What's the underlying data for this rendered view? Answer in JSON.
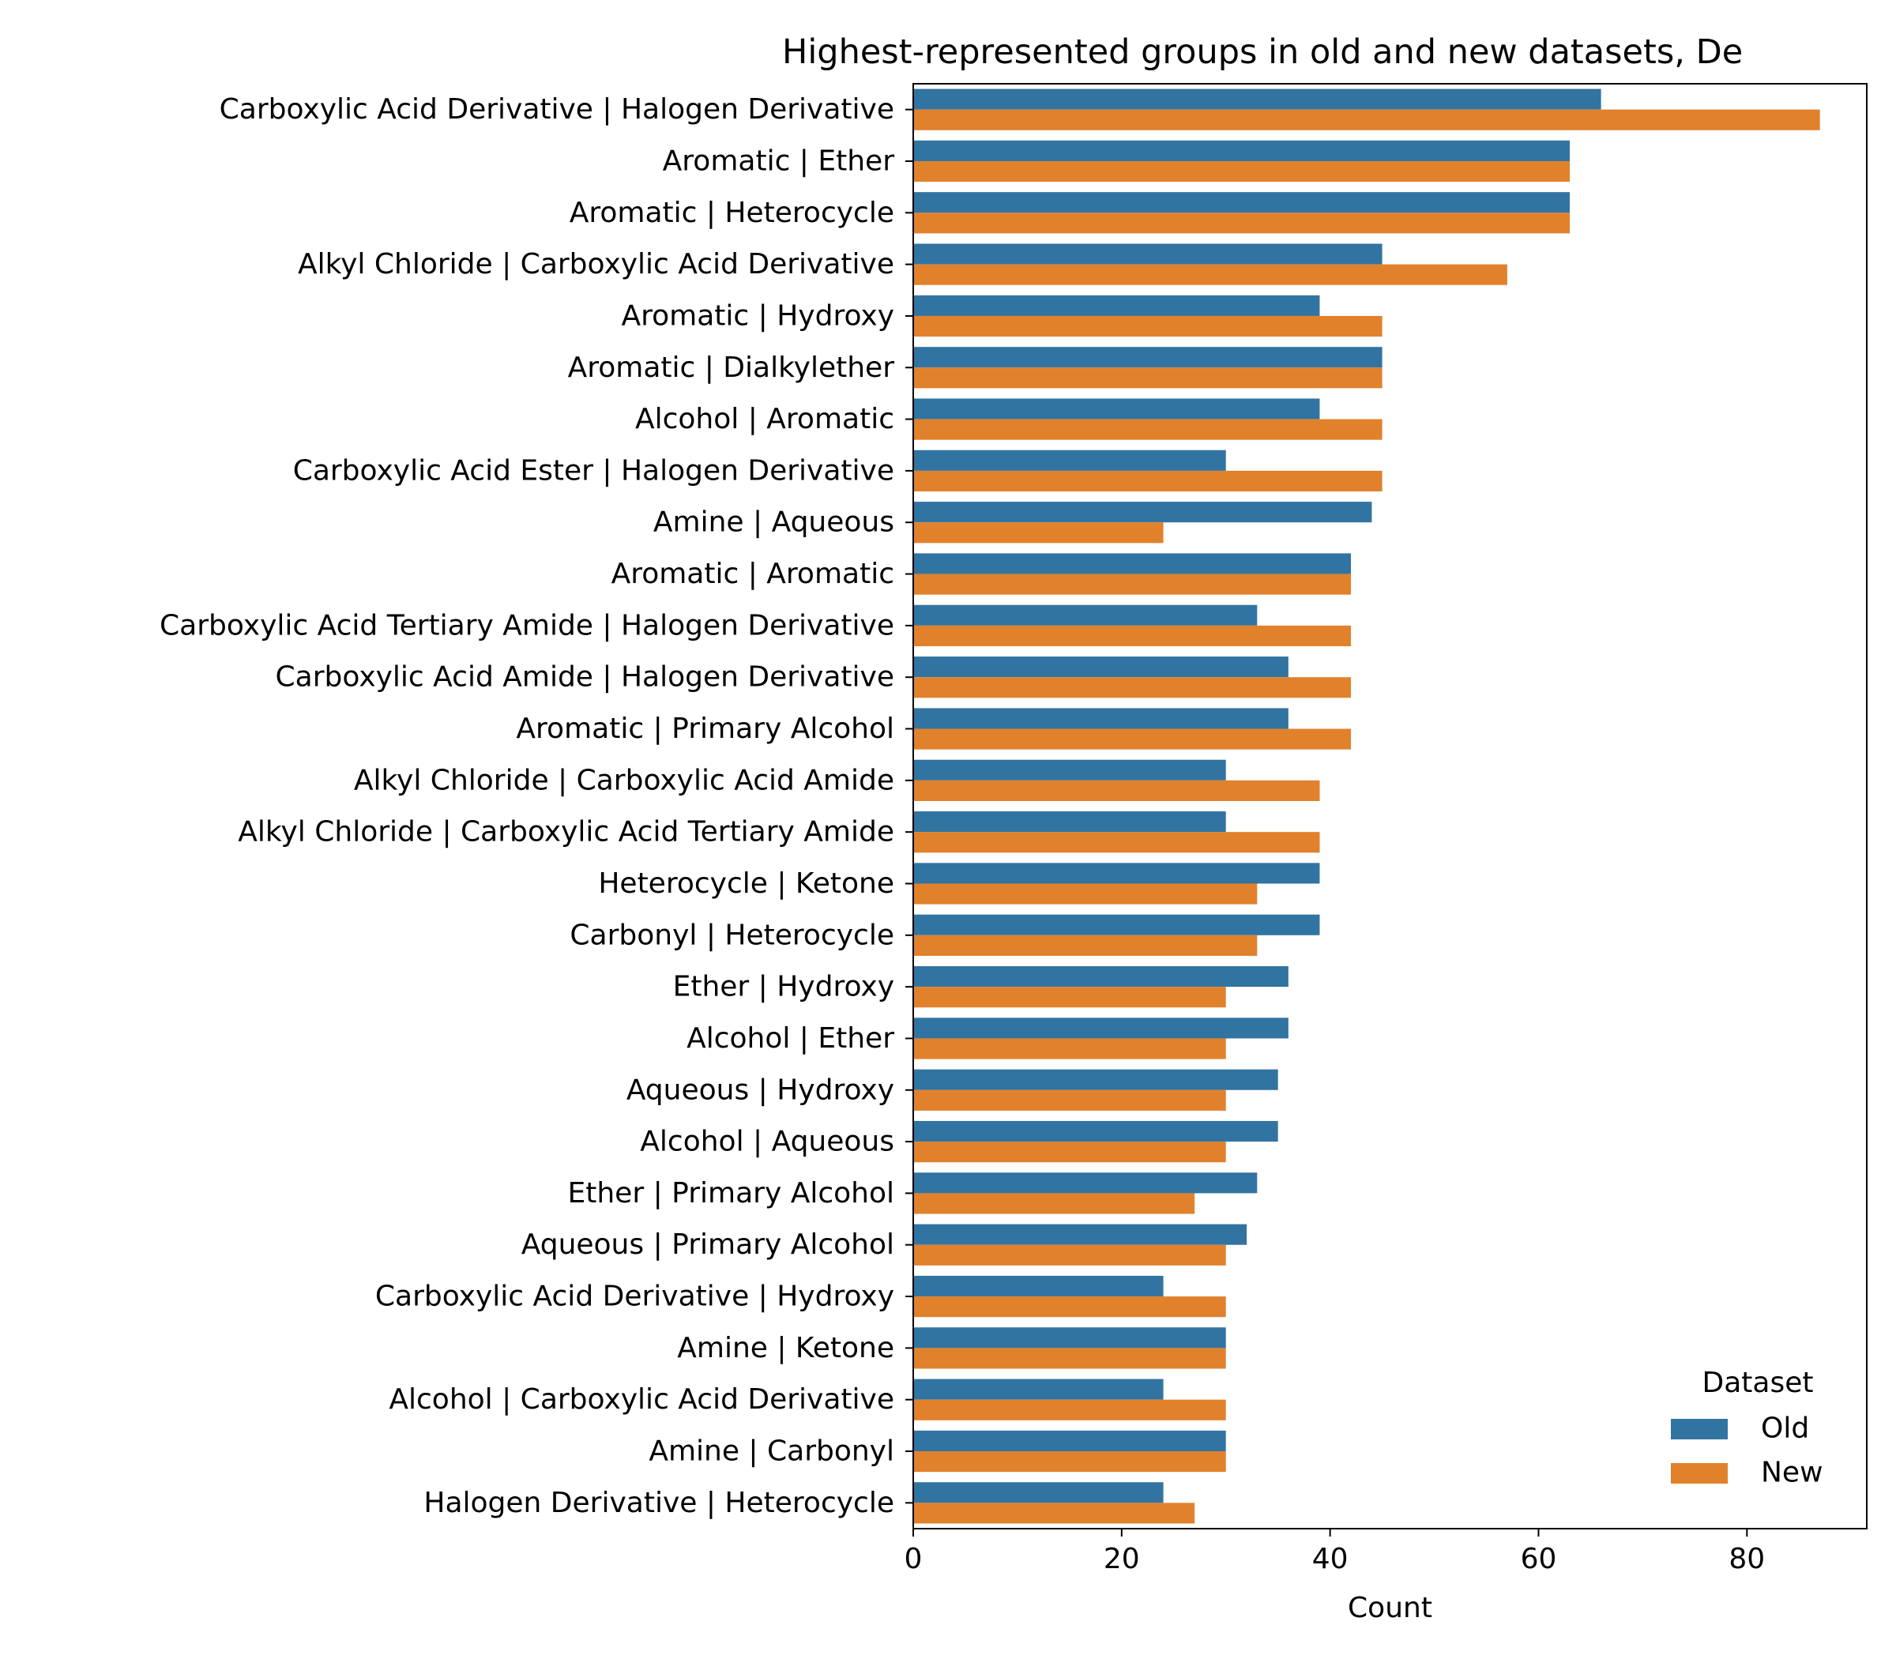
{
  "chart_data": {
    "type": "bar",
    "orientation": "horizontal",
    "title": "Highest-represented groups in old and new datasets, De",
    "xlabel": "Count",
    "ylabel": "",
    "xlim": [
      0,
      91.5
    ],
    "xticks": [
      0,
      20,
      40,
      60,
      80
    ],
    "grid": false,
    "legend": {
      "title": "Dataset",
      "placement": "lower-right"
    },
    "categories": [
      "Carboxylic Acid Derivative | Halogen Derivative",
      "Aromatic | Ether",
      "Aromatic | Heterocycle",
      "Alkyl Chloride | Carboxylic Acid Derivative",
      "Aromatic | Hydroxy",
      "Aromatic | Dialkylether",
      "Alcohol | Aromatic",
      "Carboxylic Acid Ester | Halogen Derivative",
      "Amine | Aqueous",
      "Aromatic | Aromatic",
      "Carboxylic Acid Tertiary Amide | Halogen Derivative",
      "Carboxylic Acid Amide | Halogen Derivative",
      "Aromatic | Primary Alcohol",
      "Alkyl Chloride | Carboxylic Acid Amide",
      "Alkyl Chloride | Carboxylic Acid Tertiary Amide",
      "Heterocycle | Ketone",
      "Carbonyl | Heterocycle",
      "Ether | Hydroxy",
      "Alcohol | Ether",
      "Aqueous | Hydroxy",
      "Alcohol | Aqueous",
      "Ether | Primary Alcohol",
      "Aqueous | Primary Alcohol",
      "Carboxylic Acid Derivative | Hydroxy",
      "Amine | Ketone",
      "Alcohol | Carboxylic Acid Derivative",
      "Amine | Carbonyl",
      "Halogen Derivative | Heterocycle"
    ],
    "series": [
      {
        "name": "Old",
        "color": "#3274a1",
        "values": [
          66,
          63,
          63,
          45,
          39,
          45,
          39,
          30,
          44,
          42,
          33,
          36,
          36,
          30,
          30,
          39,
          39,
          36,
          36,
          35,
          35,
          33,
          32,
          24,
          30,
          24,
          30,
          24
        ]
      },
      {
        "name": "New",
        "color": "#e1812c",
        "values": [
          87,
          63,
          63,
          57,
          45,
          45,
          45,
          45,
          24,
          42,
          42,
          42,
          42,
          39,
          39,
          33,
          33,
          30,
          30,
          30,
          30,
          27,
          30,
          30,
          30,
          30,
          30,
          27
        ]
      }
    ]
  }
}
